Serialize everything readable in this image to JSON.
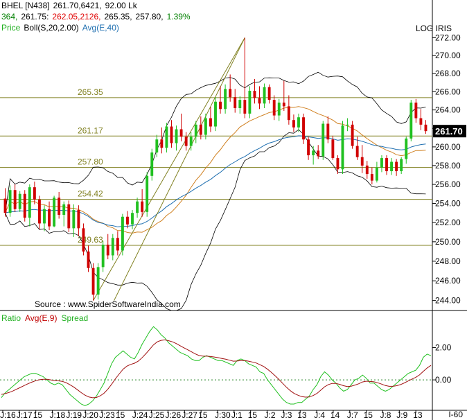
{
  "header": {
    "line1": [
      {
        "text": "BHEL [N438]",
        "color": "#000000"
      },
      {
        "text": "261.70,6421,",
        "color": "#000000"
      },
      {
        "text": "92.00  Lk",
        "color": "#000000"
      }
    ],
    "line2": [
      {
        "text": "364,",
        "color": "#008000"
      },
      {
        "text": "261.75:",
        "color": "#000000"
      },
      {
        "text": "262.05,2126,",
        "color": "#e00000"
      },
      {
        "text": "265.35,",
        "color": "#000000"
      },
      {
        "text": "257.80,",
        "color": "#000000"
      },
      {
        "text": "1.39%",
        "color": "#008000"
      }
    ],
    "line3": [
      {
        "text": "Price",
        "color": "#20b020"
      },
      {
        "text": "Boll(S,20,2.00)",
        "color": "#000000"
      },
      {
        "text": "Avg(E,40)",
        "color": "#1f6fb0"
      }
    ],
    "scale_label": "LOG  IRIS",
    "source": "Source : www.SpiderSoftwareIndia.com",
    "corner": "I-60"
  },
  "lower_legend": [
    {
      "text": "Ratio",
      "color": "#20b020"
    },
    {
      "text": "Avg(E,9)",
      "color": "#c00000"
    },
    {
      "text": "Spread",
      "color": "#20b020"
    }
  ],
  "colors": {
    "up": "#20c020",
    "down": "#d00000",
    "level": "#808020",
    "bollinger": "#000000",
    "ema": "#1f6fb0",
    "midband": "#d08020",
    "ratio": "#20c020",
    "ratio_avg": "#a01010",
    "trend": "#808020"
  },
  "chart_data": [
    {
      "type": "candlestick",
      "title": "BHEL [N438]",
      "ylim": [
        243.0,
        272.5
      ],
      "scale": "log",
      "y_ticks": [
        244,
        246,
        248,
        250,
        252,
        254,
        256,
        258,
        260,
        262,
        264,
        266,
        268,
        270,
        272
      ],
      "y_tick_labels": [
        "244.00",
        "246.00",
        "248.00",
        "250.00",
        "252.00",
        "254.00",
        "256.00",
        "258.00",
        "260.00",
        "262.00",
        "264.00",
        "266.00",
        "268.00",
        "270.00",
        "272.00"
      ],
      "x_labels": [
        "J:16",
        "J:17",
        "15",
        "J:18",
        "J:19",
        "J:20",
        "J:23",
        "15",
        "J:24",
        "J:25",
        "J:26",
        "J:27",
        "15",
        "J:30",
        "J:1",
        "15",
        "J:2",
        "J:3",
        "13",
        "J:4",
        "14",
        "J:7",
        "15",
        "J:8",
        "J:9",
        "13"
      ],
      "last_price": "261.70",
      "levels": [
        {
          "value": 265.35,
          "label": "265.35"
        },
        {
          "value": 261.17,
          "label": "261.17"
        },
        {
          "value": 257.8,
          "label": "257.80"
        },
        {
          "value": 254.42,
          "label": "254.42"
        },
        {
          "value": 249.63,
          "label": "249.63"
        }
      ],
      "candles": [
        [
          254.5,
          255.6,
          252.6,
          253.0
        ],
        [
          253.0,
          255.9,
          252.6,
          255.4
        ],
        [
          255.4,
          256.0,
          253.1,
          253.4
        ],
        [
          253.4,
          255.3,
          253.1,
          255.0
        ],
        [
          255.0,
          255.4,
          252.1,
          252.5
        ],
        [
          252.5,
          256.0,
          251.6,
          255.7
        ],
        [
          255.7,
          256.3,
          253.9,
          254.4
        ],
        [
          254.4,
          254.8,
          251.3,
          251.9
        ],
        [
          251.9,
          253.8,
          251.1,
          253.4
        ],
        [
          253.4,
          254.2,
          251.2,
          251.6
        ],
        [
          251.6,
          254.8,
          251.5,
          254.6
        ],
        [
          254.6,
          255.2,
          252.4,
          252.8
        ],
        [
          252.8,
          254.2,
          251.6,
          253.9
        ],
        [
          253.9,
          254.3,
          251.0,
          251.4
        ],
        [
          251.4,
          253.9,
          250.5,
          253.3
        ],
        [
          253.3,
          253.8,
          250.6,
          251.4
        ],
        [
          251.4,
          251.9,
          248.6,
          249.0
        ],
        [
          249.0,
          249.6,
          246.9,
          247.3
        ],
        [
          247.3,
          247.8,
          244.0,
          244.6
        ],
        [
          244.6,
          247.8,
          244.1,
          247.4
        ],
        [
          247.4,
          250.1,
          246.9,
          249.7
        ],
        [
          249.7,
          250.8,
          248.2,
          248.6
        ],
        [
          248.6,
          250.8,
          248.1,
          250.4
        ],
        [
          250.4,
          251.1,
          248.6,
          249.1
        ],
        [
          249.1,
          252.9,
          248.6,
          252.6
        ],
        [
          252.6,
          253.2,
          251.4,
          251.8
        ],
        [
          251.8,
          253.3,
          251.3,
          253.0
        ],
        [
          253.0,
          254.6,
          252.5,
          254.2
        ],
        [
          254.2,
          255.5,
          252.6,
          253.1
        ],
        [
          253.1,
          257.3,
          252.6,
          256.9
        ],
        [
          256.9,
          259.8,
          256.4,
          259.4
        ],
        [
          259.4,
          261.3,
          258.9,
          260.8
        ],
        [
          260.8,
          262.1,
          259.3,
          259.9
        ],
        [
          259.9,
          262.6,
          259.4,
          262.2
        ],
        [
          262.2,
          262.9,
          259.9,
          260.4
        ],
        [
          260.4,
          262.3,
          259.6,
          261.9
        ],
        [
          261.9,
          263.6,
          260.6,
          261.1
        ],
        [
          261.1,
          261.6,
          259.6,
          260.1
        ],
        [
          260.1,
          261.6,
          259.6,
          261.1
        ],
        [
          261.1,
          262.8,
          260.4,
          262.4
        ],
        [
          262.4,
          263.3,
          260.8,
          261.3
        ],
        [
          261.3,
          263.6,
          260.8,
          263.1
        ],
        [
          263.1,
          264.3,
          261.6,
          262.2
        ],
        [
          262.2,
          265.4,
          261.7,
          264.9
        ],
        [
          264.9,
          266.6,
          263.6,
          264.1
        ],
        [
          264.1,
          266.8,
          263.6,
          266.3
        ],
        [
          266.3,
          267.9,
          264.9,
          265.4
        ],
        [
          265.4,
          266.3,
          263.7,
          264.2
        ],
        [
          264.2,
          265.5,
          263.6,
          265.1
        ],
        [
          265.1,
          272.0,
          263.1,
          263.6
        ],
        [
          263.6,
          266.6,
          263.1,
          266.1
        ],
        [
          266.1,
          267.4,
          264.7,
          265.3
        ],
        [
          265.3,
          266.6,
          264.1,
          264.7
        ],
        [
          264.7,
          266.9,
          264.2,
          266.5
        ],
        [
          266.5,
          266.8,
          264.7,
          265.1
        ],
        [
          265.1,
          265.6,
          262.9,
          263.4
        ],
        [
          263.4,
          265.2,
          262.8,
          264.8
        ],
        [
          264.8,
          267.2,
          263.9,
          264.4
        ],
        [
          264.4,
          265.6,
          262.4,
          262.9
        ],
        [
          262.9,
          263.5,
          261.6,
          262.1
        ],
        [
          262.1,
          263.6,
          261.6,
          263.2
        ],
        [
          263.2,
          263.6,
          260.3,
          260.8
        ],
        [
          260.8,
          261.1,
          258.6,
          259.1
        ],
        [
          259.1,
          260.1,
          258.1,
          259.6
        ],
        [
          259.6,
          260.2,
          258.7,
          259.0
        ],
        [
          259.0,
          262.8,
          258.6,
          262.5
        ],
        [
          262.5,
          263.3,
          260.4,
          260.8
        ],
        [
          260.8,
          261.2,
          258.6,
          258.8
        ],
        [
          258.8,
          259.1,
          257.1,
          257.6
        ],
        [
          257.6,
          262.8,
          257.1,
          262.3
        ],
        [
          262.3,
          263.1,
          261.7,
          262.4
        ],
        [
          262.4,
          262.8,
          259.8,
          260.1
        ],
        [
          260.1,
          261.1,
          258.6,
          258.9
        ],
        [
          258.9,
          260.2,
          257.2,
          258.0
        ],
        [
          258.0,
          258.5,
          256.6,
          257.1
        ],
        [
          257.1,
          257.8,
          256.0,
          256.4
        ],
        [
          256.4,
          258.4,
          256.2,
          257.8
        ],
        [
          257.8,
          259.1,
          257.3,
          258.8
        ],
        [
          258.8,
          259.1,
          257.0,
          257.4
        ],
        [
          257.4,
          258.8,
          257.0,
          258.4
        ],
        [
          258.4,
          258.7,
          256.9,
          257.4
        ],
        [
          257.4,
          258.9,
          257.1,
          258.7
        ],
        [
          258.7,
          261.1,
          258.2,
          260.9
        ],
        [
          260.9,
          265.1,
          260.6,
          264.8
        ],
        [
          264.8,
          265.2,
          262.6,
          263.1
        ],
        [
          263.1,
          264.1,
          261.8,
          262.4
        ],
        [
          262.4,
          262.9,
          261.4,
          261.7
        ]
      ]
    },
    {
      "type": "line",
      "title": "Ratio",
      "ylim": [
        -1.8,
        3.7
      ],
      "y_ticks": [
        0.0,
        2.0
      ],
      "y_tick_labels": [
        "0.00",
        "2.00"
      ],
      "series": [
        {
          "name": "Ratio",
          "values": [
            -1.1,
            -0.8,
            -0.6,
            -0.4,
            -0.2,
            0.0,
            0.2,
            0.3,
            0.4,
            0.4,
            0.3,
            0.2,
            0.0,
            -0.2,
            -0.3,
            -0.2,
            -0.3,
            -0.6,
            -0.9,
            -1.1,
            -1.3,
            -1.5,
            -1.6,
            -1.5,
            -1.3,
            -1.0,
            -0.6,
            -0.2,
            0.4,
            1.0,
            1.4,
            1.6,
            1.8,
            1.6,
            1.4,
            1.3,
            1.7,
            2.2,
            2.6,
            3.0,
            3.3,
            3.1,
            2.8,
            2.6,
            2.3,
            2.1,
            1.9,
            1.7,
            1.6,
            1.5,
            1.3,
            1.2,
            1.2,
            1.4,
            1.5,
            1.4,
            1.3,
            1.2,
            1.2,
            1.1,
            1.0,
            0.9,
            1.2,
            1.3,
            1.2,
            1.0,
            0.9,
            0.8,
            0.5,
            0.4,
            0.0,
            -0.3,
            -0.6,
            -0.9,
            -1.2,
            -1.4,
            -1.5,
            -1.5,
            -1.4,
            -1.4,
            -1.2,
            -1.0,
            -0.6,
            -0.3,
            0.2,
            0.5,
            0.3,
            0.0,
            -0.2,
            -0.5,
            -0.7,
            -0.6,
            -0.3,
            0.0,
            0.1,
            0.3,
            0.1,
            -0.2,
            -0.2,
            -0.4,
            -0.6,
            -0.7,
            -0.6,
            -0.4,
            -0.2,
            0.0,
            0.2,
            0.4,
            0.5,
            0.6,
            0.9,
            1.4,
            1.6,
            1.5
          ]
        },
        {
          "name": "Avg(E,9)",
          "values": [
            -0.9,
            -0.85,
            -0.78,
            -0.69,
            -0.58,
            -0.47,
            -0.35,
            -0.24,
            -0.14,
            -0.05,
            0.01,
            0.04,
            0.04,
            0.0,
            -0.05,
            -0.06,
            -0.09,
            -0.17,
            -0.3,
            -0.44,
            -0.61,
            -0.79,
            -0.95,
            -1.06,
            -1.11,
            -1.09,
            -0.99,
            -0.83,
            -0.58,
            -0.27,
            0.07,
            0.37,
            0.66,
            0.85,
            0.96,
            1.03,
            1.16,
            1.37,
            1.62,
            1.89,
            2.17,
            2.36,
            2.45,
            2.48,
            2.43,
            2.36,
            2.25,
            2.12,
            1.99,
            1.87,
            1.74,
            1.61,
            1.51,
            1.47,
            1.47,
            1.45,
            1.42,
            1.38,
            1.33,
            1.28,
            1.22,
            1.16,
            1.17,
            1.2,
            1.2,
            1.16,
            1.11,
            1.05,
            0.94,
            0.83,
            0.66,
            0.47,
            0.26,
            0.03,
            -0.22,
            -0.46,
            -0.67,
            -0.84,
            -0.95,
            -1.04,
            -1.07,
            -1.06,
            -0.97,
            -0.84,
            -0.64,
            -0.43,
            -0.29,
            -0.22,
            -0.22,
            -0.28,
            -0.36,
            -0.41,
            -0.39,
            -0.32,
            -0.24,
            -0.13,
            -0.08,
            -0.1,
            -0.12,
            -0.18,
            -0.26,
            -0.35,
            -0.4,
            -0.4,
            -0.36,
            -0.29,
            -0.19,
            -0.07,
            0.05,
            0.16,
            0.31,
            0.53,
            0.74,
            0.9
          ]
        }
      ],
      "reference_line": 0.0
    }
  ]
}
